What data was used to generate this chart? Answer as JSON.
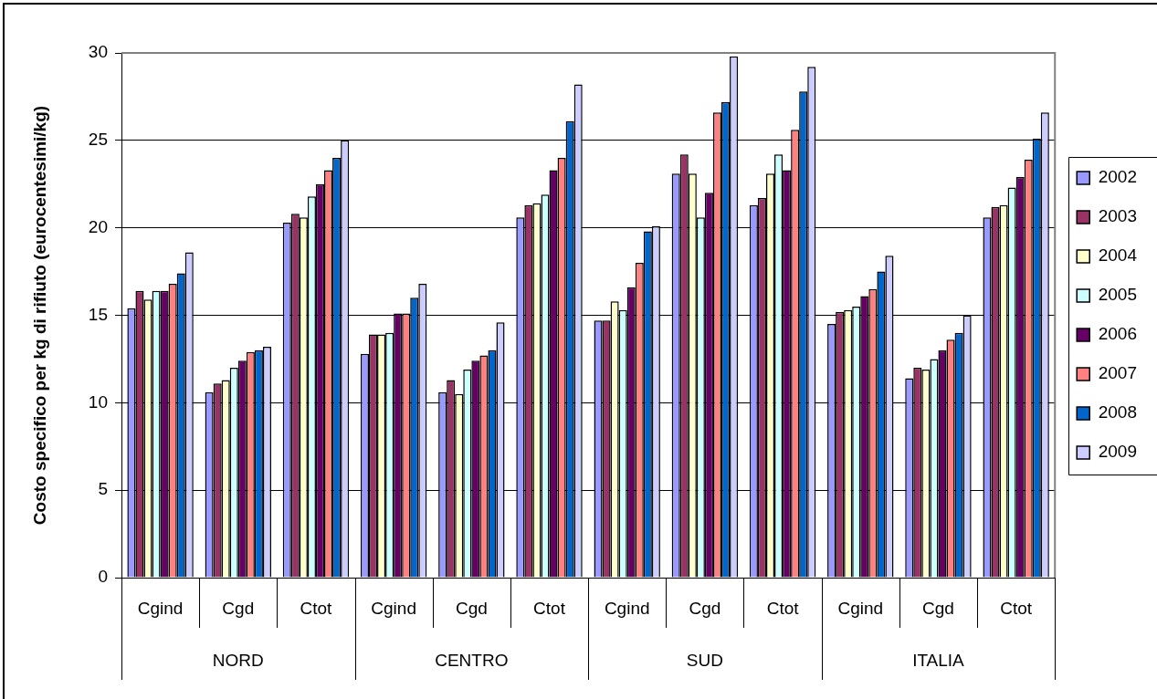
{
  "chart_data": {
    "type": "bar",
    "ylabel": "Costo specifico per kg di rifiuto (eurocentesimi/kg)",
    "categories": [
      "Cgind",
      "Cgd",
      "Ctot",
      "Cgind",
      "Cgd",
      "Ctot",
      "Cgind",
      "Cgd",
      "Ctot",
      "Cgind",
      "Cgd",
      "Ctot"
    ],
    "annotations": [
      "NORD",
      "CENTRO",
      "SUD",
      "ITALIA"
    ],
    "series": [
      {
        "name": "2002",
        "color": "#9999ff",
        "values": [
          15.4,
          10.6,
          20.3,
          12.8,
          10.6,
          20.6,
          14.7,
          23.1,
          21.3,
          14.5,
          11.4,
          20.6
        ]
      },
      {
        "name": "2003",
        "color": "#993366",
        "values": [
          16.4,
          11.1,
          20.8,
          13.9,
          11.3,
          21.3,
          14.7,
          24.2,
          21.7,
          15.2,
          12.0,
          21.2
        ]
      },
      {
        "name": "2004",
        "color": "#ffffcc",
        "values": [
          15.9,
          11.3,
          20.6,
          13.9,
          10.5,
          21.4,
          15.8,
          23.1,
          23.1,
          15.3,
          11.9,
          21.3
        ]
      },
      {
        "name": "2005",
        "color": "#ccffff",
        "values": [
          16.4,
          12.0,
          21.8,
          14.0,
          11.9,
          21.9,
          15.3,
          20.6,
          24.2,
          15.5,
          12.5,
          22.3
        ]
      },
      {
        "name": "2006",
        "color": "#660066",
        "values": [
          16.4,
          12.4,
          22.5,
          15.1,
          12.4,
          23.3,
          16.6,
          22.0,
          23.3,
          16.1,
          13.0,
          22.9
        ]
      },
      {
        "name": "2007",
        "color": "#ff8080",
        "values": [
          16.8,
          12.9,
          23.3,
          15.1,
          12.7,
          24.0,
          18.0,
          26.6,
          25.6,
          16.5,
          13.6,
          23.9
        ]
      },
      {
        "name": "2008",
        "color": "#0066cc",
        "values": [
          17.4,
          13.0,
          24.0,
          16.0,
          13.0,
          26.1,
          19.8,
          27.2,
          27.8,
          17.5,
          14.0,
          25.1
        ]
      },
      {
        "name": "2009",
        "color": "#ccccff",
        "values": [
          18.6,
          13.2,
          25.0,
          16.8,
          14.6,
          28.2,
          20.1,
          29.8,
          29.2,
          18.4,
          15.0,
          26.6
        ]
      }
    ],
    "ylim": [
      0,
      30
    ],
    "yticks": [
      0,
      5,
      10,
      15,
      20,
      25,
      30
    ],
    "grid": "y",
    "legend": "right"
  }
}
